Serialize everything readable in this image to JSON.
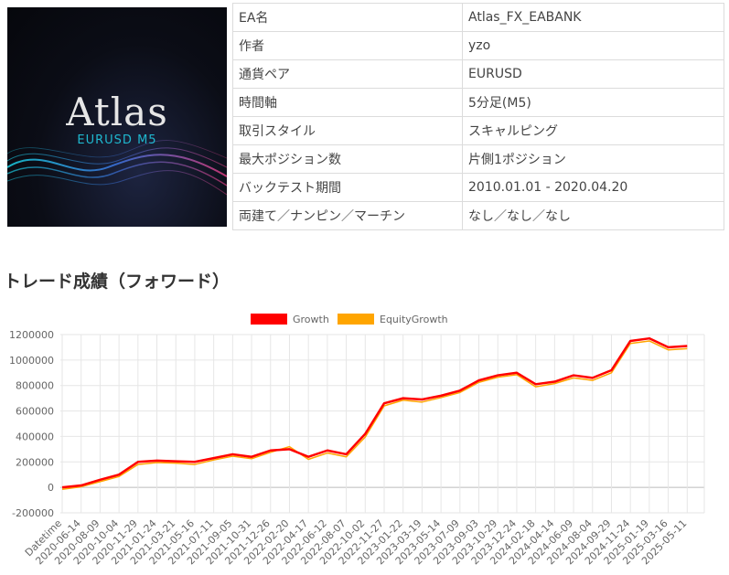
{
  "banner": {
    "title": "Atlas",
    "subtitle": "EURUSD M5"
  },
  "spec_rows": [
    {
      "key": "EA名",
      "value": "Atlas_FX_EABANK"
    },
    {
      "key": "作者",
      "value": "yzo"
    },
    {
      "key": "通貨ペア",
      "value": "EURUSD"
    },
    {
      "key": "時間軸",
      "value": "5分足(M5)"
    },
    {
      "key": "取引スタイル",
      "value": "スキャルピング"
    },
    {
      "key": "最大ポジション数",
      "value": "片側1ポジション"
    },
    {
      "key": "バックテスト期間",
      "value": "2010.01.01 - 2020.04.20"
    },
    {
      "key": "両建て／ナンピン／マーチン",
      "value": "なし／なし／なし"
    }
  ],
  "section_title": "トレード成績（フォワード）",
  "chart_data": {
    "type": "line",
    "title": "",
    "xlabel": "",
    "ylabel": "",
    "ylim": [
      -200000,
      1200000
    ],
    "yticks": [
      -200000,
      0,
      200000,
      400000,
      600000,
      800000,
      1000000,
      1200000
    ],
    "grid": true,
    "legend": "top",
    "categories": [
      "Datetime",
      "2020-06-14",
      "2020-08-09",
      "2020-10-04",
      "2020-11-29",
      "2021-01-24",
      "2021-03-21",
      "2021-05-16",
      "2021-07-11",
      "2021-09-05",
      "2021-10-31",
      "2021-12-26",
      "2022-02-20",
      "2022-04-17",
      "2022-06-12",
      "2022-08-07",
      "2022-10-02",
      "2022-11-27",
      "2023-01-22",
      "2023-03-19",
      "2023-05-14",
      "2023-07-09",
      "2023-09-03",
      "2023-10-29",
      "2023-12-24",
      "2024-02-18",
      "2024-04-14",
      "2024-06-09",
      "2024-08-04",
      "2024-09-29",
      "2024-11-24",
      "2025-01-19",
      "2025-03-16",
      "2025-05-11"
    ],
    "series": [
      {
        "name": "Growth",
        "color": "#ff0000",
        "values": [
          0,
          15000,
          60000,
          100000,
          200000,
          210000,
          205000,
          200000,
          230000,
          260000,
          240000,
          290000,
          300000,
          240000,
          290000,
          260000,
          420000,
          660000,
          700000,
          690000,
          720000,
          760000,
          840000,
          880000,
          900000,
          810000,
          830000,
          880000,
          860000,
          920000,
          1150000,
          1170000,
          1100000,
          1110000
        ]
      },
      {
        "name": "EquityGrowth",
        "color": "#ffa500",
        "values": [
          -15000,
          5000,
          45000,
          85000,
          180000,
          195000,
          190000,
          180000,
          215000,
          245000,
          225000,
          275000,
          320000,
          220000,
          270000,
          240000,
          395000,
          640000,
          685000,
          670000,
          705000,
          745000,
          825000,
          865000,
          885000,
          790000,
          815000,
          860000,
          840000,
          900000,
          1130000,
          1150000,
          1080000,
          1090000
        ]
      }
    ]
  }
}
